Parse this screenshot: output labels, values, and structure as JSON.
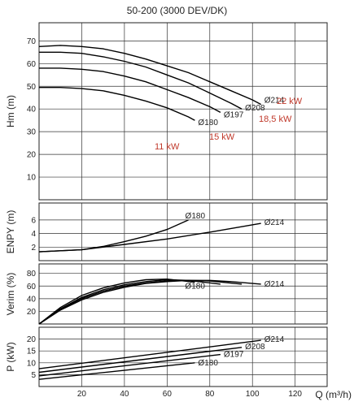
{
  "chart_data": {
    "title": "50-200 (3000 DEV/DK)",
    "x_axis": {
      "label": "Q (m³/h)",
      "range": [
        0,
        135
      ],
      "ticks": [
        20,
        40,
        60,
        80,
        100,
        120
      ]
    },
    "grid": true,
    "panels": [
      {
        "id": "hm",
        "type": "line",
        "ylabel": "Hm (m)",
        "ylim": [
          0,
          78
        ],
        "yticks": [
          10,
          20,
          30,
          40,
          50,
          60,
          70
        ],
        "series": [
          {
            "name": "Ø214",
            "x": [
              0,
              10,
              20,
              30,
              40,
              50,
              60,
              70,
              80,
              90,
              100,
              104
            ],
            "y": [
              67.5,
              68,
              67.5,
              66.5,
              64.5,
              62,
              59,
              56,
              52,
              48,
              44,
              42
            ]
          },
          {
            "name": "Ø208",
            "x": [
              0,
              10,
              20,
              30,
              40,
              50,
              60,
              70,
              80,
              90,
              95
            ],
            "y": [
              65,
              65,
              64.5,
              63,
              61,
              58.5,
              55,
              51.5,
              47,
              42.5,
              40
            ]
          },
          {
            "name": "Ø197",
            "x": [
              0,
              10,
              20,
              30,
              40,
              50,
              60,
              70,
              80,
              85
            ],
            "y": [
              58,
              58,
              57.5,
              56.5,
              54.5,
              52,
              48.5,
              45,
              41,
              38.5
            ]
          },
          {
            "name": "Ø180",
            "x": [
              0,
              10,
              20,
              30,
              40,
              50,
              60,
              70,
              73
            ],
            "y": [
              49.5,
              49.5,
              49,
              48,
              46,
              43.5,
              40.5,
              36.5,
              35
            ]
          }
        ],
        "curve_labels": [
          "Ø214",
          "Ø208",
          "Ø197",
          "Ø180"
        ],
        "power_annotations": [
          "22 kW",
          "18,5 kW",
          "15 kW",
          "11 kW"
        ]
      },
      {
        "id": "npsh",
        "type": "line",
        "ylabel": "ENPY (m)",
        "ylim": [
          0,
          8.5
        ],
        "yticks": [
          2,
          4,
          6
        ],
        "series": [
          {
            "name": "Ø180",
            "x": [
              0,
              20,
              30,
              40,
              50,
              60,
              70
            ],
            "y": [
              1.3,
              1.6,
              2.1,
              2.8,
              3.6,
              4.6,
              6.0
            ]
          },
          {
            "name": "Ø214",
            "x": [
              0,
              20,
              40,
              60,
              80,
              104
            ],
            "y": [
              1.3,
              1.6,
              2.4,
              3.2,
              4.2,
              5.5
            ]
          }
        ],
        "curve_labels": [
          "Ø180",
          "Ø214"
        ]
      },
      {
        "id": "eff",
        "type": "line",
        "ylabel": "Verim (%)",
        "ylim": [
          0,
          95
        ],
        "yticks": [
          20,
          40,
          60,
          80
        ],
        "series": [
          {
            "name": "Ø214",
            "x": [
              0,
              10,
              20,
              30,
              40,
              50,
              60,
              70,
              80,
              90,
              104
            ],
            "y": [
              0,
              22,
              38,
              50,
              58,
              64,
              67,
              69,
              69,
              67,
              63
            ]
          },
          {
            "name": "Ø208",
            "x": [
              0,
              10,
              20,
              30,
              40,
              50,
              60,
              70,
              80,
              95
            ],
            "y": [
              0,
              23,
              40,
              52,
              60,
              65,
              68,
              69,
              68,
              63
            ]
          },
          {
            "name": "Ø197",
            "x": [
              0,
              10,
              20,
              30,
              40,
              50,
              60,
              70,
              85
            ],
            "y": [
              0,
              24,
              42,
              54,
              62,
              67,
              70,
              69,
              63
            ]
          },
          {
            "name": "Ø180",
            "x": [
              0,
              10,
              20,
              30,
              40,
              50,
              60,
              73
            ],
            "y": [
              0,
              26,
              45,
              57,
              65,
              70,
              71,
              66
            ]
          }
        ],
        "curve_labels": [
          "Ø180",
          "Ø214"
        ]
      },
      {
        "id": "power",
        "type": "line",
        "ylabel": "P (kW)",
        "ylim": [
          0,
          25
        ],
        "yticks": [
          5,
          10,
          15,
          20
        ],
        "series": [
          {
            "name": "Ø214",
            "x": [
              0,
              104
            ],
            "y": [
              7.5,
              19.5
            ]
          },
          {
            "name": "Ø208",
            "x": [
              0,
              95
            ],
            "y": [
              6,
              16.5
            ]
          },
          {
            "name": "Ø197",
            "x": [
              0,
              85
            ],
            "y": [
              4.5,
              13.5
            ]
          },
          {
            "name": "Ø180",
            "x": [
              0,
              73
            ],
            "y": [
              3,
              10
            ]
          }
        ],
        "curve_labels": [
          "Ø214",
          "Ø208",
          "Ø197",
          "Ø180"
        ]
      }
    ]
  }
}
